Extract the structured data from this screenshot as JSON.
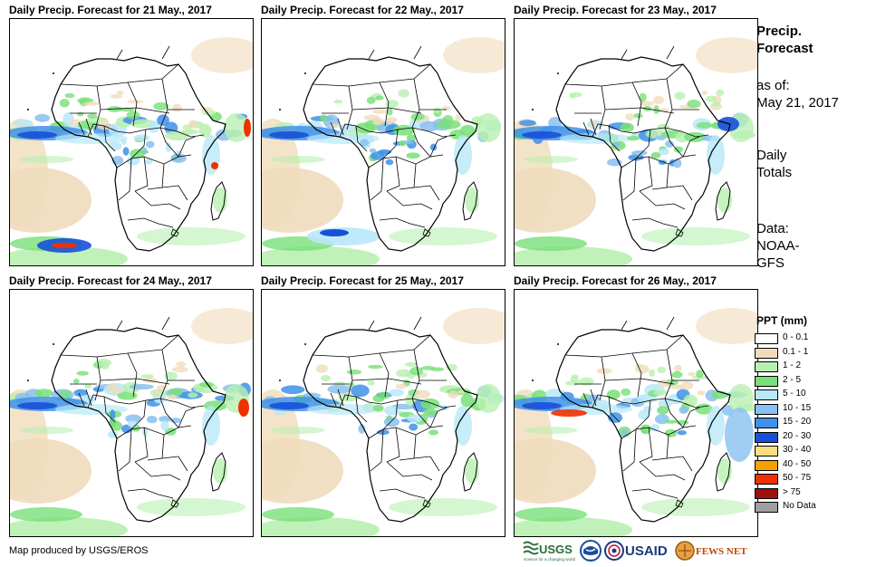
{
  "panels": [
    {
      "title": "Daily Precip. Forecast for 21 May., 2017"
    },
    {
      "title": "Daily Precip. Forecast for 22 May., 2017"
    },
    {
      "title": "Daily Precip. Forecast for 23 May., 2017"
    },
    {
      "title": "Daily Precip. Forecast for 24 May., 2017"
    },
    {
      "title": "Daily Precip. Forecast for 25 May., 2017"
    },
    {
      "title": "Daily Precip. Forecast for 26 May., 2017"
    }
  ],
  "sidebar": {
    "heading_line1": "Precip.",
    "heading_line2": "Forecast",
    "asof_label": "as of:",
    "asof_date": "May 21, 2017",
    "totals_line1": "Daily",
    "totals_line2": "Totals",
    "data_label": "Data:",
    "data_line1": "NOAA-",
    "data_line2": "GFS"
  },
  "legend": {
    "title": "PPT (mm)",
    "items": [
      {
        "label": "0 - 0.1",
        "color": "#ffffff"
      },
      {
        "label": "0.1 - 1",
        "color": "#f0dcbc"
      },
      {
        "label": "1 - 2",
        "color": "#b8f0b0"
      },
      {
        "label": "2 - 5",
        "color": "#78e078"
      },
      {
        "label": "5 - 10",
        "color": "#b8e8f8"
      },
      {
        "label": "10 - 15",
        "color": "#88c0f0"
      },
      {
        "label": "15 - 20",
        "color": "#4090e8"
      },
      {
        "label": "20 - 30",
        "color": "#1850d8"
      },
      {
        "label": "30 - 40",
        "color": "#f8e080"
      },
      {
        "label": "40 - 50",
        "color": "#f8a000"
      },
      {
        "label": "50 - 75",
        "color": "#f03000"
      },
      {
        "label": "> 75",
        "color": "#a01010"
      },
      {
        "label": "No Data",
        "color": "#a0a0a0"
      }
    ]
  },
  "footer": {
    "credit": "Map produced by USGS/EROS",
    "logo_usgs": "USGS",
    "logo_usgs_tagline": "science for a changing world",
    "logo_noaa": "NOAA",
    "logo_usaid": "USAID",
    "logo_fewsnet": "FEWS NET"
  }
}
